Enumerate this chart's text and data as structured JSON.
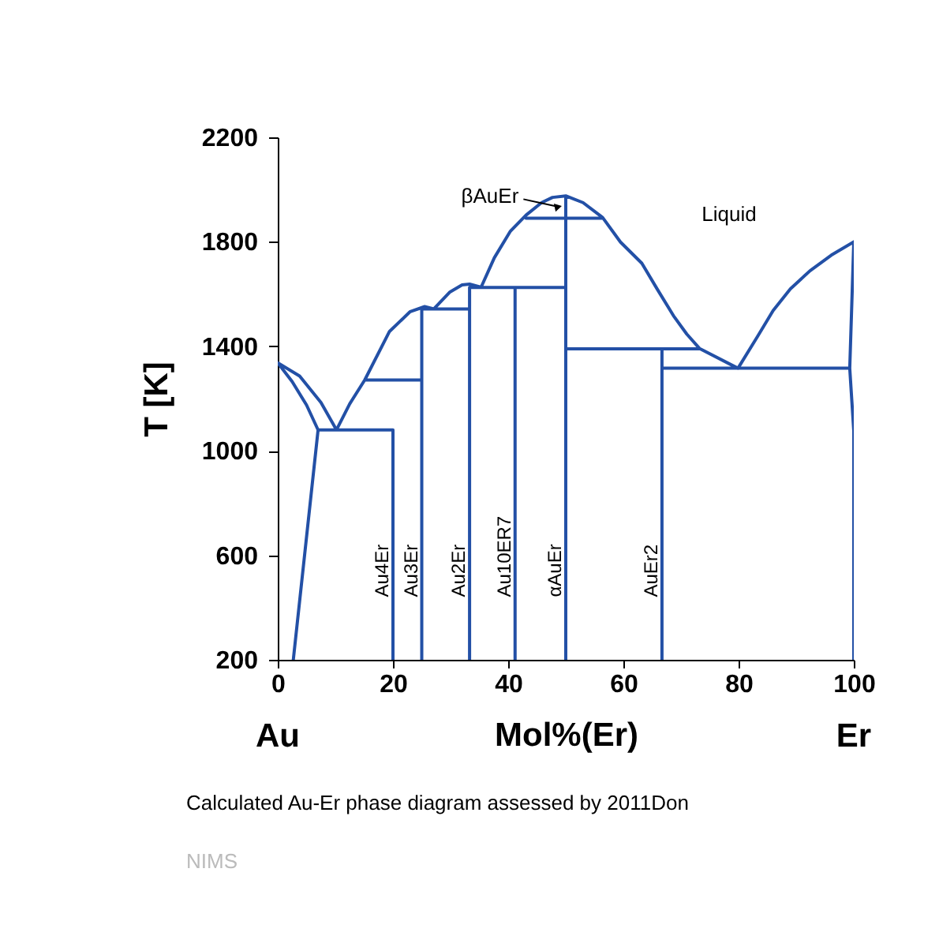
{
  "chart_data": {
    "type": "line",
    "xlabel": "Mol%(Er)",
    "ylabel": "T [K]",
    "xlim": [
      0,
      100
    ],
    "ylim": [
      200,
      2200
    ],
    "xticks": [
      0,
      20,
      40,
      60,
      80,
      100
    ],
    "yticks": [
      200,
      600,
      1000,
      1400,
      1800,
      2200
    ],
    "grid": false,
    "legend": false,
    "annotations": [
      {
        "text": "βAuEr",
        "x": 49.5,
        "y": 1930
      },
      "Liquid",
      {
        "text": "Au4Er",
        "x": 20,
        "y": 440
      },
      {
        "text": "Au3Er",
        "x": 25,
        "y": 440
      },
      {
        "text": "Au2Er",
        "x": 33.3,
        "y": 440
      },
      {
        "text": "Au10ER7",
        "x": 41.2,
        "y": 440
      },
      {
        "text": "αAuEr",
        "x": 50,
        "y": 440
      },
      {
        "text": "AuEr2",
        "x": 66.7,
        "y": 440
      },
      "Au",
      "Er",
      "Calculated Au-Er phase diagram assessed by 2011Don",
      "NIMS"
    ],
    "series": [
      {
        "color": "#2350a6",
        "x": [
          2.7,
          7,
          5,
          2.5,
          0,
          3.8,
          7.5,
          10.2,
          12.5,
          15.1,
          19.4,
          23,
          25.5,
          27.1,
          29.9,
          32,
          33.3,
          35.3,
          37.6,
          40.4,
          43.1,
          45.8,
          47.7,
          50,
          53,
          56.4,
          59.5,
          63.2,
          65.9,
          68.7,
          71,
          73.2,
          79.9,
          83.3,
          86,
          89,
          92.4,
          96.1,
          100,
          99.3,
          100,
          100,
          null,
          7,
          20,
          20,
          null,
          15.1,
          25,
          null,
          25,
          25,
          33.3,
          null,
          33.3,
          33.3,
          50,
          null,
          41.2,
          41.2,
          null,
          50,
          50,
          null,
          43.1,
          56.4,
          null,
          50,
          73.2,
          null,
          66.7,
          66.7,
          null,
          66.7,
          99.3
        ],
        "values": [
          200,
          1080,
          1175,
          1265,
          1337,
          1286,
          1185,
          1080,
          1180,
          1271,
          1457,
          1533,
          1552,
          1543,
          1608,
          1635,
          1638,
          1626,
          1739,
          1841,
          1902,
          1950,
          1970,
          1976,
          1950,
          1893,
          1799,
          1718,
          1618,
          1517,
          1447,
          1392,
          1316,
          1438,
          1537,
          1620,
          1689,
          1749,
          1800,
          1316,
          1075,
          200,
          null,
          1080,
          1080,
          200,
          null,
          1271,
          1271,
          null,
          200,
          1543,
          1543,
          null,
          200,
          1625,
          1625,
          null,
          1625,
          200,
          null,
          200,
          1976,
          null,
          1890,
          1890,
          null,
          1390,
          1390,
          null,
          1390,
          200,
          null,
          1316,
          1316
        ]
      }
    ]
  }
}
